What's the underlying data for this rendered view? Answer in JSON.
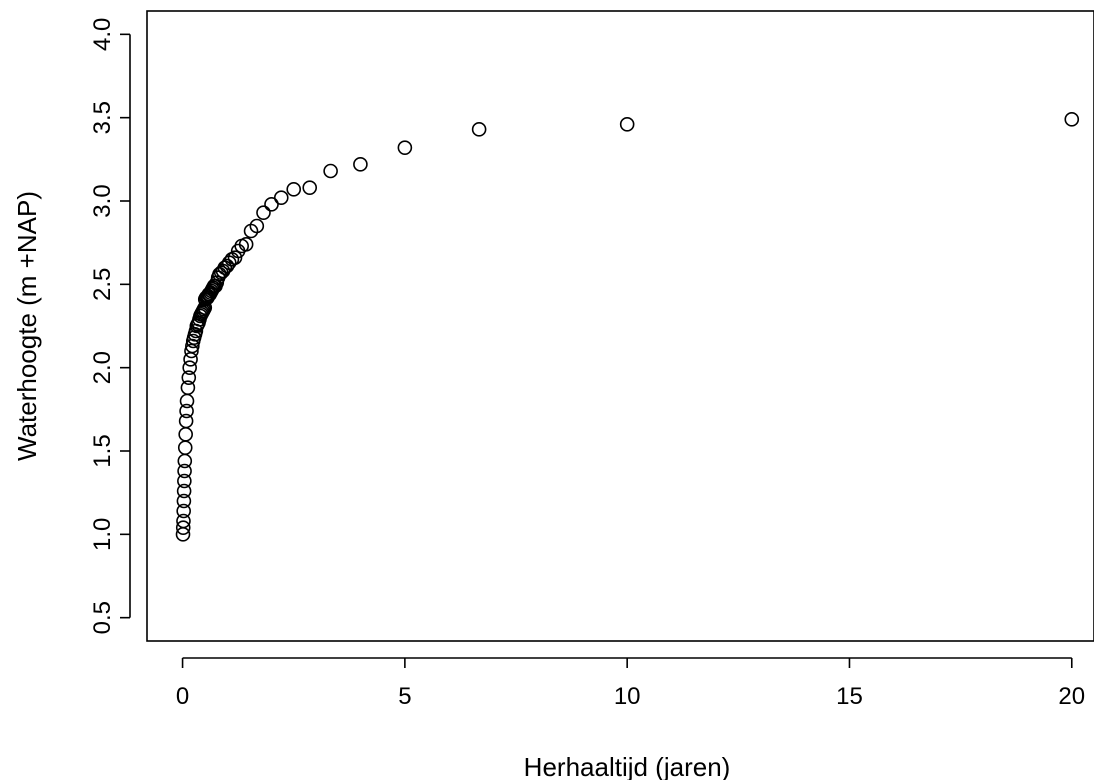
{
  "chart_data": {
    "type": "scatter",
    "title": "",
    "xlabel": "Herhaaltijd (jaren)",
    "ylabel": "Waterhoogte (m +NAP)",
    "xlim": [
      -0.8,
      20.5
    ],
    "ylim": [
      0.36,
      4.14
    ],
    "x_ticks": [
      0,
      5,
      10,
      15,
      20
    ],
    "x_tick_labels": [
      "0",
      "5",
      "10",
      "15",
      "20"
    ],
    "y_ticks": [
      0.5,
      1.0,
      1.5,
      2.0,
      2.5,
      3.0,
      3.5,
      4.0
    ],
    "y_tick_labels": [
      "0.5",
      "1.0",
      "1.5",
      "2.0",
      "2.5",
      "3.0",
      "3.5",
      "4.0"
    ],
    "grid": false,
    "marker": "open-circle",
    "series": [
      {
        "points": [
          [
            20.0,
            3.49
          ],
          [
            10.0,
            3.46
          ],
          [
            6.67,
            3.43
          ],
          [
            5.0,
            3.32
          ],
          [
            4.0,
            3.22
          ],
          [
            3.33,
            3.18
          ],
          [
            2.86,
            3.08
          ],
          [
            2.5,
            3.07
          ],
          [
            2.22,
            3.02
          ],
          [
            2.0,
            2.98
          ],
          [
            1.82,
            2.93
          ],
          [
            1.67,
            2.85
          ],
          [
            1.54,
            2.82
          ],
          [
            1.43,
            2.74
          ],
          [
            1.33,
            2.73
          ],
          [
            1.25,
            2.7
          ],
          [
            1.18,
            2.66
          ],
          [
            1.11,
            2.65
          ],
          [
            1.05,
            2.63
          ],
          [
            1.0,
            2.61
          ],
          [
            0.95,
            2.6
          ],
          [
            0.91,
            2.58
          ],
          [
            0.87,
            2.57
          ],
          [
            0.83,
            2.56
          ],
          [
            0.8,
            2.54
          ],
          [
            0.77,
            2.51
          ],
          [
            0.74,
            2.49
          ],
          [
            0.71,
            2.49
          ],
          [
            0.69,
            2.48
          ],
          [
            0.67,
            2.47
          ],
          [
            0.65,
            2.46
          ],
          [
            0.63,
            2.45
          ],
          [
            0.61,
            2.44
          ],
          [
            0.59,
            2.44
          ],
          [
            0.57,
            2.43
          ],
          [
            0.56,
            2.42
          ],
          [
            0.54,
            2.42
          ],
          [
            0.53,
            2.42
          ],
          [
            0.51,
            2.41
          ],
          [
            0.5,
            2.36
          ],
          [
            0.48,
            2.35
          ],
          [
            0.46,
            2.34
          ],
          [
            0.44,
            2.33
          ],
          [
            0.42,
            2.32
          ],
          [
            0.4,
            2.31
          ],
          [
            0.38,
            2.29
          ],
          [
            0.36,
            2.27
          ],
          [
            0.34,
            2.26
          ],
          [
            0.32,
            2.25
          ],
          [
            0.3,
            2.22
          ],
          [
            0.28,
            2.2
          ],
          [
            0.26,
            2.18
          ],
          [
            0.24,
            2.16
          ],
          [
            0.22,
            2.13
          ],
          [
            0.2,
            2.1
          ],
          [
            0.18,
            2.05
          ],
          [
            0.16,
            2.0
          ],
          [
            0.14,
            1.94
          ],
          [
            0.12,
            1.88
          ],
          [
            0.1,
            1.8
          ],
          [
            0.09,
            1.74
          ],
          [
            0.08,
            1.68
          ],
          [
            0.07,
            1.6
          ],
          [
            0.06,
            1.52
          ],
          [
            0.05,
            1.44
          ],
          [
            0.045,
            1.38
          ],
          [
            0.04,
            1.32
          ],
          [
            0.035,
            1.26
          ],
          [
            0.03,
            1.2
          ],
          [
            0.025,
            1.14
          ],
          [
            0.02,
            1.08
          ],
          [
            0.015,
            1.04
          ],
          [
            0.01,
            1.0
          ]
        ]
      }
    ]
  }
}
